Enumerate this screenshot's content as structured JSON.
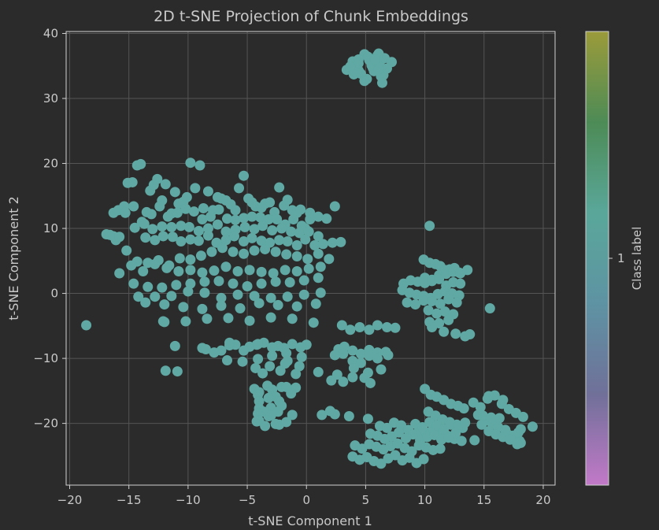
{
  "chart_data": {
    "type": "scatter",
    "title": "2D t-SNE Projection of Chunk Embeddings",
    "xlabel": "t-SNE Component 1",
    "ylabel": "t-SNE Component 2",
    "xlim": [
      -20.3,
      21.0
    ],
    "ylim": [
      -29.5,
      40.3
    ],
    "xticks": [
      -20,
      -15,
      -10,
      -5,
      0,
      5,
      10,
      15,
      20
    ],
    "xtick_labels": [
      "−20",
      "−15",
      "−10",
      "−5",
      "0",
      "5",
      "10",
      "15",
      "20"
    ],
    "yticks": [
      -20,
      -10,
      0,
      10,
      20,
      30,
      40
    ],
    "ytick_labels": [
      "−20",
      "−10",
      "0",
      "10",
      "20",
      "30",
      "40"
    ],
    "grid": true,
    "point_color": "#5fa8a3",
    "colorbar": {
      "label": "Class label",
      "tick_values": [
        1
      ],
      "tick_labels": [
        "1"
      ],
      "colors": [
        "#c279c8",
        "#707099",
        "#5e93a3",
        "#5aa79a",
        "#4d8b56",
        "#9b9b3a"
      ]
    },
    "series": [
      {
        "x": [
          4.9,
          3.4,
          3.9,
          4.4,
          4.4,
          5.3,
          6.2,
          6.6,
          4.0,
          5.6,
          6.5,
          5.1,
          4.4,
          6.0,
          6.1,
          7.2,
          5.7,
          6.8,
          4.6,
          5.2,
          3.7,
          6.4,
          6.3,
          5.5,
          5.8,
          6.1,
          4.9,
          -16.6,
          -16.3,
          -15.9,
          -15.4,
          -15.1,
          -14.7,
          -14.3,
          -14.0,
          -13.5,
          -13.2,
          -12.9,
          -12.6,
          -12.2,
          -11.9,
          -11.4,
          -11.1,
          -10.8,
          -10.4,
          -10.1,
          -9.8,
          -9.4,
          -9.0,
          -8.7,
          -8.3,
          -7.9,
          -7.5,
          -7.2,
          -6.8,
          -6.4,
          -6.0,
          -5.7,
          -5.3,
          -4.9,
          -4.6,
          -4.3,
          -3.8,
          -3.5,
          -3.1,
          -2.7,
          -2.3,
          -1.9,
          -1.6,
          -1.2,
          -0.8,
          -0.5,
          -0.1,
          0.3,
          -14.6,
          -13.9,
          -13.1,
          -12.4,
          -11.7,
          -10.9,
          -10.2,
          -9.5,
          -8.8,
          -8.1,
          -7.4,
          -6.7,
          -6.0,
          -5.3,
          -4.6,
          -3.9,
          -3.2,
          -2.5,
          -1.8,
          -1.1,
          -0.4,
          0.3,
          1.0,
          1.7,
          2.4,
          -15.3,
          -14.5,
          -13.7,
          -13.0,
          -12.2,
          -11.4,
          -10.6,
          -9.9,
          -9.1,
          -8.3,
          -7.5,
          -6.8,
          -6.0,
          -5.2,
          -4.4,
          -3.7,
          -2.9,
          -2.1,
          -1.3,
          -0.6,
          0.2,
          1.0,
          -13.6,
          -12.8,
          -12.1,
          -11.3,
          -10.6,
          -9.8,
          -9.1,
          -8.3,
          -7.6,
          -6.8,
          -6.1,
          -5.3,
          -4.6,
          -3.8,
          -3.1,
          -2.3,
          -1.6,
          -0.8,
          -0.1,
          0.7,
          1.4,
          2.2,
          2.9,
          -16.1,
          -15.2,
          -14.3,
          -13.4,
          -12.5,
          -11.6,
          -10.7,
          -9.8,
          -8.9,
          -8.0,
          -7.1,
          -6.2,
          -5.3,
          -4.4,
          -3.5,
          -2.6,
          -1.7,
          -0.8,
          0.1,
          1.0,
          1.9,
          -14.8,
          -13.8,
          -12.8,
          -11.8,
          -10.8,
          -9.8,
          -8.8,
          -7.8,
          -6.8,
          -5.8,
          -4.8,
          -3.8,
          -2.8,
          -1.8,
          -0.8,
          0.2,
          1.2,
          -15.8,
          -14.6,
          -13.4,
          -12.2,
          -11.0,
          -9.8,
          -8.6,
          -7.4,
          -6.2,
          -5.0,
          -3.8,
          -2.6,
          -1.4,
          -0.2,
          1.0,
          -14.2,
          -12.8,
          -11.4,
          -10.0,
          -8.6,
          -7.2,
          -5.8,
          -4.4,
          -3.0,
          -1.6,
          -0.2,
          1.2,
          -13.6,
          -12.0,
          -10.4,
          -8.8,
          -7.2,
          -5.6,
          -4.0,
          -2.4,
          -0.8,
          0.8,
          -12.0,
          -10.2,
          -8.4,
          -6.6,
          -4.8,
          -3.0,
          -1.2,
          0.6,
          -11.1,
          -8.8,
          -6.5,
          -4.2,
          -1.9,
          -16.9,
          -16.3,
          -15.8,
          -18.6,
          -11.9,
          -10.9,
          -12.1,
          -8.5,
          -7.2,
          -6.0,
          -4.8,
          -3.6,
          -2.4,
          -1.2,
          0.0,
          -7.8,
          -6.5,
          -5.3,
          -4.1,
          -2.9,
          -1.7,
          -0.5,
          -6.7,
          -5.4,
          -4.1,
          -2.9,
          -1.6,
          -0.4,
          -4.3,
          -3.1,
          -1.8,
          -0.6,
          -3.7,
          -2.2,
          -0.9,
          -4.4,
          -3.3,
          -2.1,
          -0.9,
          -4.0,
          -2.9,
          -1.7,
          -4.1,
          -2.6,
          -1.3,
          -4.0,
          -3.2,
          -2.3,
          -4.0,
          -3.0,
          -2.1,
          -3.6,
          -2.4,
          -4.1,
          -3.2,
          -4.0,
          -2.3,
          -3.5,
          -1.2,
          -4.2,
          -2.6,
          -1.7,
          -3.0,
          3.0,
          3.7,
          4.5,
          5.3,
          6.0,
          6.8,
          7.5,
          2.7,
          3.2,
          3.9,
          4.6,
          5.3,
          6.0,
          6.7,
          2.4,
          3.1,
          3.9,
          4.6,
          5.3,
          6.0,
          6.9,
          4.0,
          5.2,
          6.3,
          4.9,
          5.4,
          2.6,
          3.9,
          1.0,
          2.1,
          3.1,
          2.4,
          3.6,
          5.2,
          1.3,
          2.0,
          9.9,
          10.4,
          10.9,
          11.3,
          11.7,
          12.1,
          12.5,
          12.9,
          10.0,
          10.6,
          11.2,
          11.8,
          12.4,
          13.0,
          13.6,
          8.2,
          8.8,
          9.4,
          10.0,
          10.6,
          11.2,
          11.8,
          12.4,
          13.0,
          8.1,
          8.7,
          9.3,
          9.9,
          10.5,
          11.1,
          11.7,
          12.3,
          12.9,
          8.5,
          9.2,
          9.9,
          10.6,
          11.3,
          12.0,
          12.7,
          10.3,
          11.0,
          11.7,
          12.4,
          10.4,
          11.2,
          12.0,
          10.6,
          11.6,
          12.6,
          13.4,
          13.8,
          10.4,
          15.5,
          10.0,
          10.5,
          11.0,
          11.6,
          12.2,
          12.8,
          13.3,
          10.3,
          10.9,
          11.5,
          12.1,
          12.7,
          13.2,
          10.7,
          11.3,
          11.9,
          12.5,
          13.1,
          9.5,
          10.1,
          10.7,
          11.3,
          6.2,
          6.8,
          7.4,
          8.0,
          8.6,
          9.2,
          9.8,
          10.4,
          11.0,
          11.6,
          12.2,
          12.8,
          13.4,
          5.4,
          6.0,
          6.6,
          7.2,
          7.8,
          8.4,
          9.0,
          9.6,
          10.2,
          10.8,
          11.4,
          12.0,
          12.6,
          4.1,
          4.7,
          5.3,
          5.9,
          6.5,
          7.1,
          7.7,
          8.3,
          8.9,
          9.5,
          10.1,
          10.7,
          11.3,
          3.9,
          4.5,
          5.1,
          5.7,
          6.3,
          6.9,
          7.5,
          8.1,
          8.7,
          9.3,
          9.9,
          14.1,
          14.7,
          15.3,
          15.9,
          16.5,
          17.1,
          17.7,
          18.3,
          19.1,
          14.5,
          15.1,
          15.7,
          16.3,
          16.9,
          17.5,
          18.1,
          14.2,
          14.9,
          15.6,
          16.2,
          16.8,
          17.4,
          18.0,
          14.8,
          15.4,
          16.0,
          16.6,
          17.2,
          17.8,
          17.9,
          18.1,
          16.6,
          15.4
        ],
        "y": [
          36.8,
          34.4,
          35.7,
          36.0,
          34.3,
          35.9,
          35.6,
          36.2,
          33.7,
          34.7,
          33.6,
          33.0,
          35.4,
          36.6,
          36.9,
          35.6,
          34.2,
          34.6,
          33.8,
          36.4,
          34.9,
          32.4,
          33.4,
          35.1,
          36.0,
          34.5,
          32.7,
          9.0,
          12.4,
          12.8,
          13.4,
          17.0,
          17.1,
          19.7,
          19.9,
          12.5,
          15.8,
          16.7,
          17.6,
          14.3,
          16.8,
          12.3,
          15.6,
          13.8,
          14.1,
          14.8,
          20.1,
          16.2,
          19.7,
          13.1,
          15.7,
          12.8,
          14.8,
          14.6,
          14.3,
          13.7,
          12.8,
          16.2,
          18.1,
          14.6,
          14.0,
          13.4,
          13.2,
          13.8,
          14.0,
          12.5,
          16.3,
          13.5,
          14.4,
          12.8,
          12.4,
          12.9,
          10.0,
          11.4,
          13.4,
          11.0,
          12.2,
          13.4,
          11.8,
          12.4,
          13.0,
          12.6,
          11.4,
          11.8,
          12.9,
          11.5,
          11.3,
          11.6,
          11.8,
          11.7,
          11.4,
          11.4,
          10.6,
          11.4,
          10.4,
          12.4,
          11.8,
          11.5,
          13.4,
          12.4,
          10.1,
          10.7,
          9.9,
          10.3,
          10.2,
          10.4,
          10.2,
          9.6,
          10.0,
          10.6,
          9.5,
          9.8,
          10.2,
          9.9,
          10.4,
          9.7,
          10.0,
          9.5,
          9.3,
          9.5,
          8.8,
          8.6,
          8.2,
          8.8,
          8.7,
          8.0,
          8.3,
          8.1,
          8.9,
          7.8,
          8.2,
          8.8,
          8.0,
          8.5,
          8.1,
          7.8,
          8.2,
          8.0,
          7.4,
          8.3,
          7.4,
          7.6,
          7.8,
          7.9,
          8.2,
          6.6,
          4.9,
          4.7,
          5.1,
          4.3,
          5.4,
          5.2,
          5.8,
          6.4,
          7.0,
          6.4,
          6.1,
          6.6,
          6.8,
          6.4,
          6.0,
          5.7,
          5.3,
          6.1,
          5.3,
          4.3,
          3.4,
          4.5,
          3.9,
          3.4,
          3.6,
          3.2,
          3.5,
          4.1,
          3.4,
          3.6,
          3.3,
          3.1,
          3.6,
          3.4,
          3.8,
          4.1,
          3.1,
          1.5,
          1.0,
          0.9,
          1.3,
          1.5,
          1.8,
          1.9,
          1.5,
          1.1,
          1.5,
          1.8,
          1.7,
          2.0,
          2.4,
          -0.5,
          -0.5,
          -0.4,
          0.3,
          0.1,
          -0.7,
          -0.2,
          -0.4,
          -0.7,
          -0.5,
          -0.2,
          0.1,
          -1.4,
          -1.7,
          -2.1,
          -2.4,
          -1.9,
          -2.3,
          -1.5,
          -1.8,
          -2.0,
          -1.6,
          -4.4,
          -4.3,
          -3.9,
          -3.8,
          -4.2,
          -3.7,
          -3.9,
          -4.5,
          -8.1,
          -8.4,
          -8.0,
          -7.9,
          -8.4,
          9.1,
          8.8,
          8.7,
          -4.9,
          -11.9,
          -12.0,
          -4.3,
          -8.6,
          -8.8,
          -7.9,
          -8.2,
          -7.6,
          -8.1,
          -7.8,
          -7.9,
          -9.1,
          -7.6,
          -8.8,
          -7.8,
          -8.3,
          -9.2,
          -8.3,
          -10.3,
          -10.5,
          -10.1,
          -9.6,
          -10.4,
          -9.8,
          -11.5,
          -11.2,
          -10.8,
          -11.2,
          -12.3,
          -11.9,
          -12.4,
          -14.7,
          -14.2,
          -14.4,
          -14.5,
          -15.2,
          -14.8,
          -14.4,
          -15.6,
          -15.9,
          -15.4,
          -16.6,
          -16.1,
          -16.6,
          -17.7,
          -17.6,
          -17.3,
          -18.2,
          -18.2,
          -18.5,
          -18.9,
          -19.6,
          -20.2,
          -20.4,
          -18.7,
          -19.7,
          -20.1,
          -19.8,
          -18.8,
          -4.9,
          -5.6,
          -5.2,
          -5.6,
          -4.9,
          -5.2,
          -5.3,
          -8.6,
          -8.2,
          -8.8,
          -9.3,
          -8.7,
          -9.1,
          -9.0,
          -9.5,
          -9.3,
          -10.4,
          -10.7,
          -9.6,
          -10.0,
          -9.5,
          -11.5,
          -12.2,
          -11.7,
          -13.0,
          -13.8,
          -12.5,
          -12.9,
          -12.1,
          -13.4,
          -13.6,
          -18.6,
          -18.9,
          -19.3,
          -18.7,
          -18.1,
          5.2,
          4.7,
          4.5,
          4.2,
          3.6,
          3.7,
          3.9,
          3.2,
          2.4,
          2.1,
          2.8,
          3.0,
          3.3,
          3.1,
          3.6,
          1.5,
          2.0,
          1.8,
          1.6,
          1.9,
          2.2,
          1.2,
          1.7,
          1.5,
          0.5,
          0.1,
          -0.2,
          -0.4,
          -0.7,
          -0.1,
          0.3,
          0.0,
          -0.3,
          -1.4,
          -1.7,
          -1.1,
          -1.2,
          -1.6,
          -0.9,
          -1.4,
          -2.6,
          -3.1,
          -2.8,
          -3.2,
          -4.4,
          -4.6,
          -4.1,
          -5.2,
          -5.9,
          -6.2,
          -6.6,
          -6.3,
          10.4,
          -2.3,
          -14.7,
          -15.6,
          -15.9,
          -16.4,
          -17.0,
          -17.3,
          -17.7,
          -18.2,
          -18.8,
          -19.4,
          -19.8,
          -20.2,
          -20.7,
          -21.0,
          -21.5,
          -21.9,
          -22.4,
          -22.7,
          -21.2,
          -21.4,
          -20.8,
          -22.1,
          -20.4,
          -20.7,
          -19.9,
          -20.3,
          -21.0,
          -20.1,
          -20.6,
          -19.8,
          -20.3,
          -20.9,
          -20.2,
          -20.5,
          -19.9,
          -21.6,
          -21.9,
          -22.4,
          -22.0,
          -21.4,
          -22.3,
          -21.7,
          -22.6,
          -22.1,
          -21.8,
          -22.5,
          -22.2,
          -21.5,
          -23.4,
          -23.9,
          -23.2,
          -23.6,
          -24.0,
          -23.5,
          -23.1,
          -23.8,
          -24.3,
          -23.4,
          -23.7,
          -24.1,
          -23.9,
          -25.1,
          -25.6,
          -25.2,
          -25.8,
          -26.2,
          -25.4,
          -24.9,
          -25.7,
          -25.3,
          -26.1,
          -25.5,
          -16.8,
          -17.5,
          -16.2,
          -15.7,
          -17.0,
          -17.8,
          -18.4,
          -19.0,
          -20.5,
          -18.7,
          -19.6,
          -20.1,
          -19.2,
          -21.5,
          -22.3,
          -23.0,
          -22.6,
          -18.8,
          -19.1,
          -20.6,
          -21.0,
          -21.9,
          -22.7,
          -20.2,
          -21.2,
          -21.7,
          -22.1,
          -22.5,
          -23.2,
          -21.4,
          -20.9,
          -16.4,
          -15.8
        ]
      }
    ]
  }
}
